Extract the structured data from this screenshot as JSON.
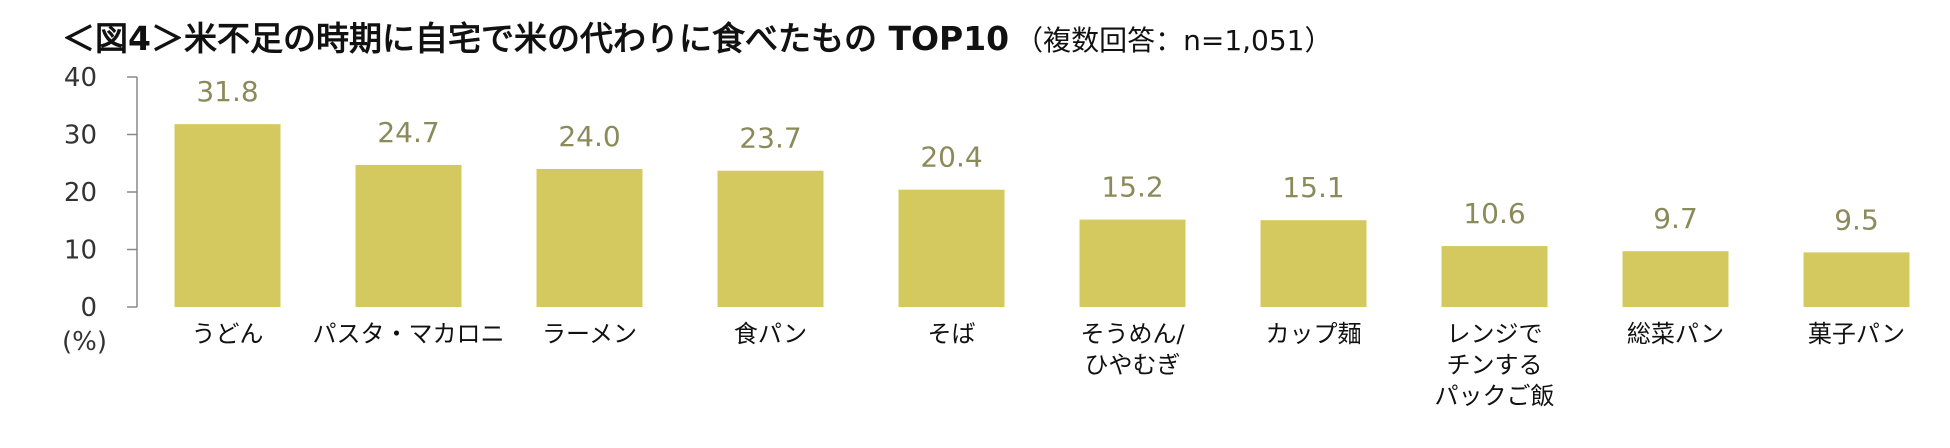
{
  "title": "＜図4＞米不足の時期に自宅で米の代わりに食べたもの TOP10",
  "subtitle": "（複数回答：n=1,051）",
  "chart_data": {
    "type": "bar",
    "categories": [
      [
        "うどん"
      ],
      [
        "パスタ・マカロニ"
      ],
      [
        "ラーメン"
      ],
      [
        "食パン"
      ],
      [
        "そば"
      ],
      [
        "そうめん/",
        "ひやむぎ"
      ],
      [
        "カップ麺"
      ],
      [
        "レンジで",
        "チンする",
        "パックご飯"
      ],
      [
        "総菜パン"
      ],
      [
        "菓子パン"
      ]
    ],
    "values": [
      31.8,
      24.7,
      24.0,
      23.7,
      20.4,
      15.2,
      15.1,
      10.6,
      9.7,
      9.5
    ],
    "value_labels": [
      "31.8",
      "24.7",
      "24.0",
      "23.7",
      "20.4",
      "15.2",
      "15.1",
      "10.6",
      "9.7",
      "9.5"
    ],
    "ylim": [
      0,
      40
    ],
    "yticks": [
      0,
      10,
      20,
      30,
      40
    ],
    "yunit": "(%)",
    "grid": false,
    "bar_color": "#d4c95f",
    "label_color": "#8a8a5a"
  }
}
